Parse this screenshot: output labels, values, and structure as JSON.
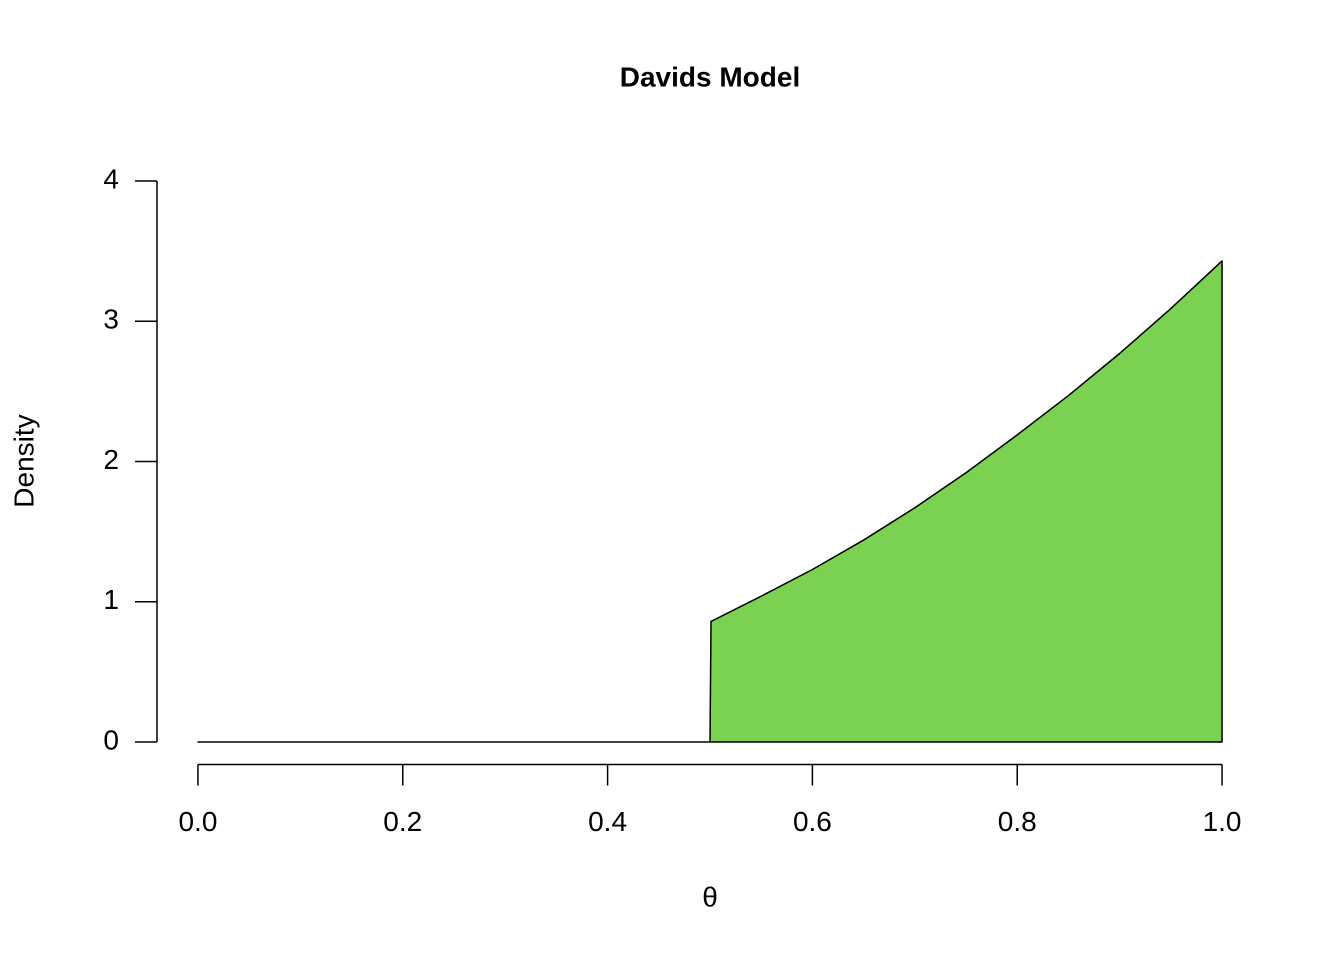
{
  "chart_data": {
    "type": "area",
    "title": "Davids Model",
    "x_label": "θ",
    "y_label": "Density",
    "x": [
      0,
      0.5,
      0.501,
      0.55,
      0.6,
      0.65,
      0.7,
      0.75,
      0.8,
      0.85,
      0.9,
      0.95,
      1.0
    ],
    "values": [
      0,
      0,
      0.86,
      1.04,
      1.23,
      1.44,
      1.67,
      1.92,
      2.19,
      2.47,
      2.77,
      3.09,
      3.43
    ],
    "color": "#7bd151",
    "xlim": [
      -0.04,
      1.04
    ],
    "ylim": [
      -0.16,
      4.16
    ],
    "xticks": [
      {
        "value": 0,
        "label": "0.0"
      },
      {
        "value": 0.2,
        "label": "0.2"
      },
      {
        "value": 0.4,
        "label": "0.4"
      },
      {
        "value": 0.6,
        "label": "0.6"
      },
      {
        "value": 0.8,
        "label": "0.8"
      },
      {
        "value": 1,
        "label": "1.0"
      }
    ],
    "yticks": [
      0,
      1,
      2,
      3,
      4
    ]
  }
}
